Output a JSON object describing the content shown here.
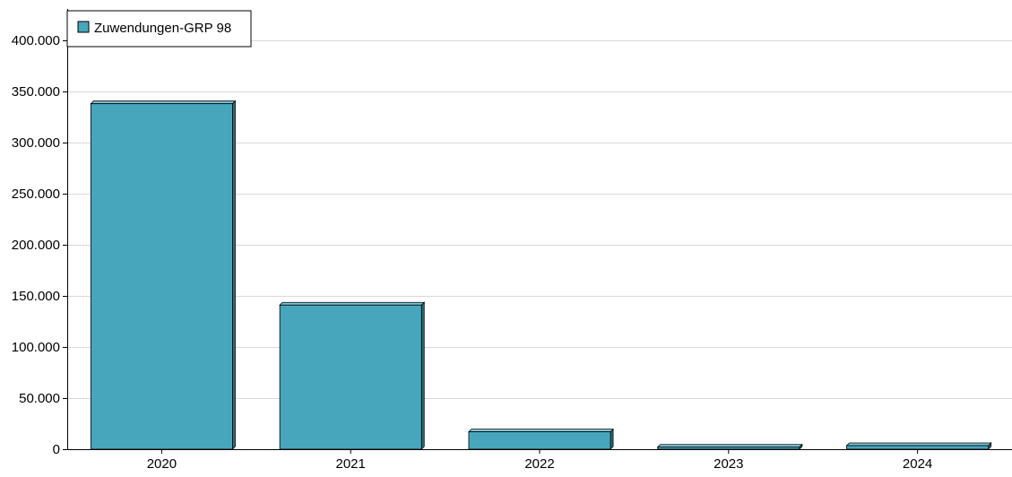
{
  "chart_data": {
    "type": "bar",
    "title": "",
    "xlabel": "",
    "ylabel": "",
    "categories": [
      "2020",
      "2021",
      "2022",
      "2023",
      "2024"
    ],
    "series": [
      {
        "name": "Zuwendungen-GRP 98",
        "values": [
          338000,
          141000,
          17000,
          2000,
          3500
        ]
      }
    ],
    "ylim": [
      0,
      400000
    ],
    "yticks": [
      0,
      50000,
      100000,
      150000,
      200000,
      250000,
      300000,
      350000,
      400000
    ],
    "ytick_labels": [
      "0",
      "50.000",
      "100.000",
      "150.000",
      "200.000",
      "250.000",
      "300.000",
      "350.000",
      "400.000"
    ],
    "grid": true,
    "legend_position": "top-left",
    "colors": {
      "bar": "#48a6bc",
      "bar_side": "#2c6f7e",
      "bar_top": "#7cc4d4",
      "grid": "#d9d9d9",
      "axis": "#000000"
    }
  }
}
